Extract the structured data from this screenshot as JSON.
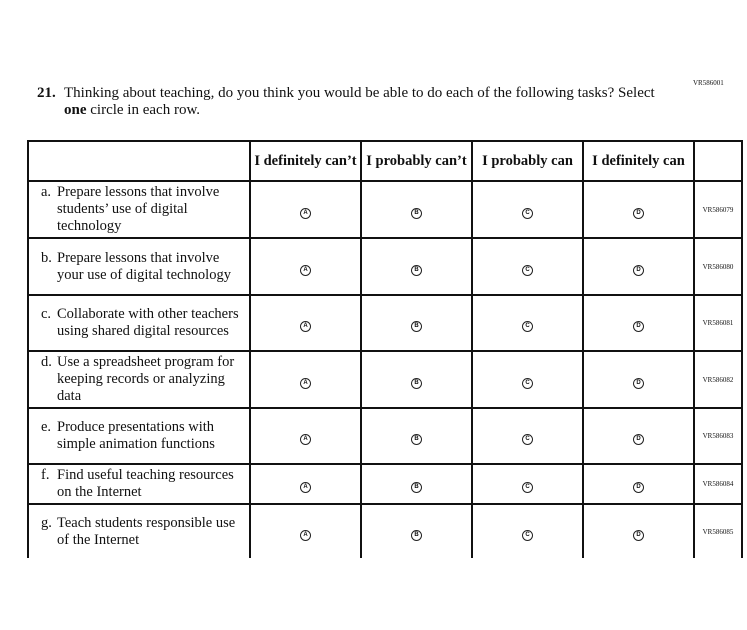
{
  "question": {
    "id": "VR586001",
    "number": "21.",
    "text_before": "Thinking about teaching, do you think you would be able to do each of the following tasks? Select ",
    "text_bold": "one",
    "text_after": " circle in each row."
  },
  "columns": [
    "I definitely can’t",
    "I probably can’t",
    "I probably can",
    "I definitely can"
  ],
  "options": [
    "A",
    "B",
    "C",
    "D"
  ],
  "rows": [
    {
      "letter": "a.",
      "text": "Prepare lessons that involve students’ use of digital technology",
      "code": "VR586079"
    },
    {
      "letter": "b.",
      "text": "Prepare lessons that involve your use of digital technology",
      "code": "VR586080"
    },
    {
      "letter": "c.",
      "text": "Collaborate with other teachers using shared digital resources",
      "code": "VR586081"
    },
    {
      "letter": "d.",
      "text": "Use a spreadsheet program for keeping records or analyzing data",
      "code": "VR586082"
    },
    {
      "letter": "e.",
      "text": "Produce presentations with simple animation functions",
      "code": "VR586083"
    },
    {
      "letter": "f.",
      "text": "Find useful teaching resources on the Internet",
      "code": "VR586084"
    },
    {
      "letter": "g.",
      "text": "Teach students responsible use of the Internet",
      "code": "VR586085"
    }
  ]
}
